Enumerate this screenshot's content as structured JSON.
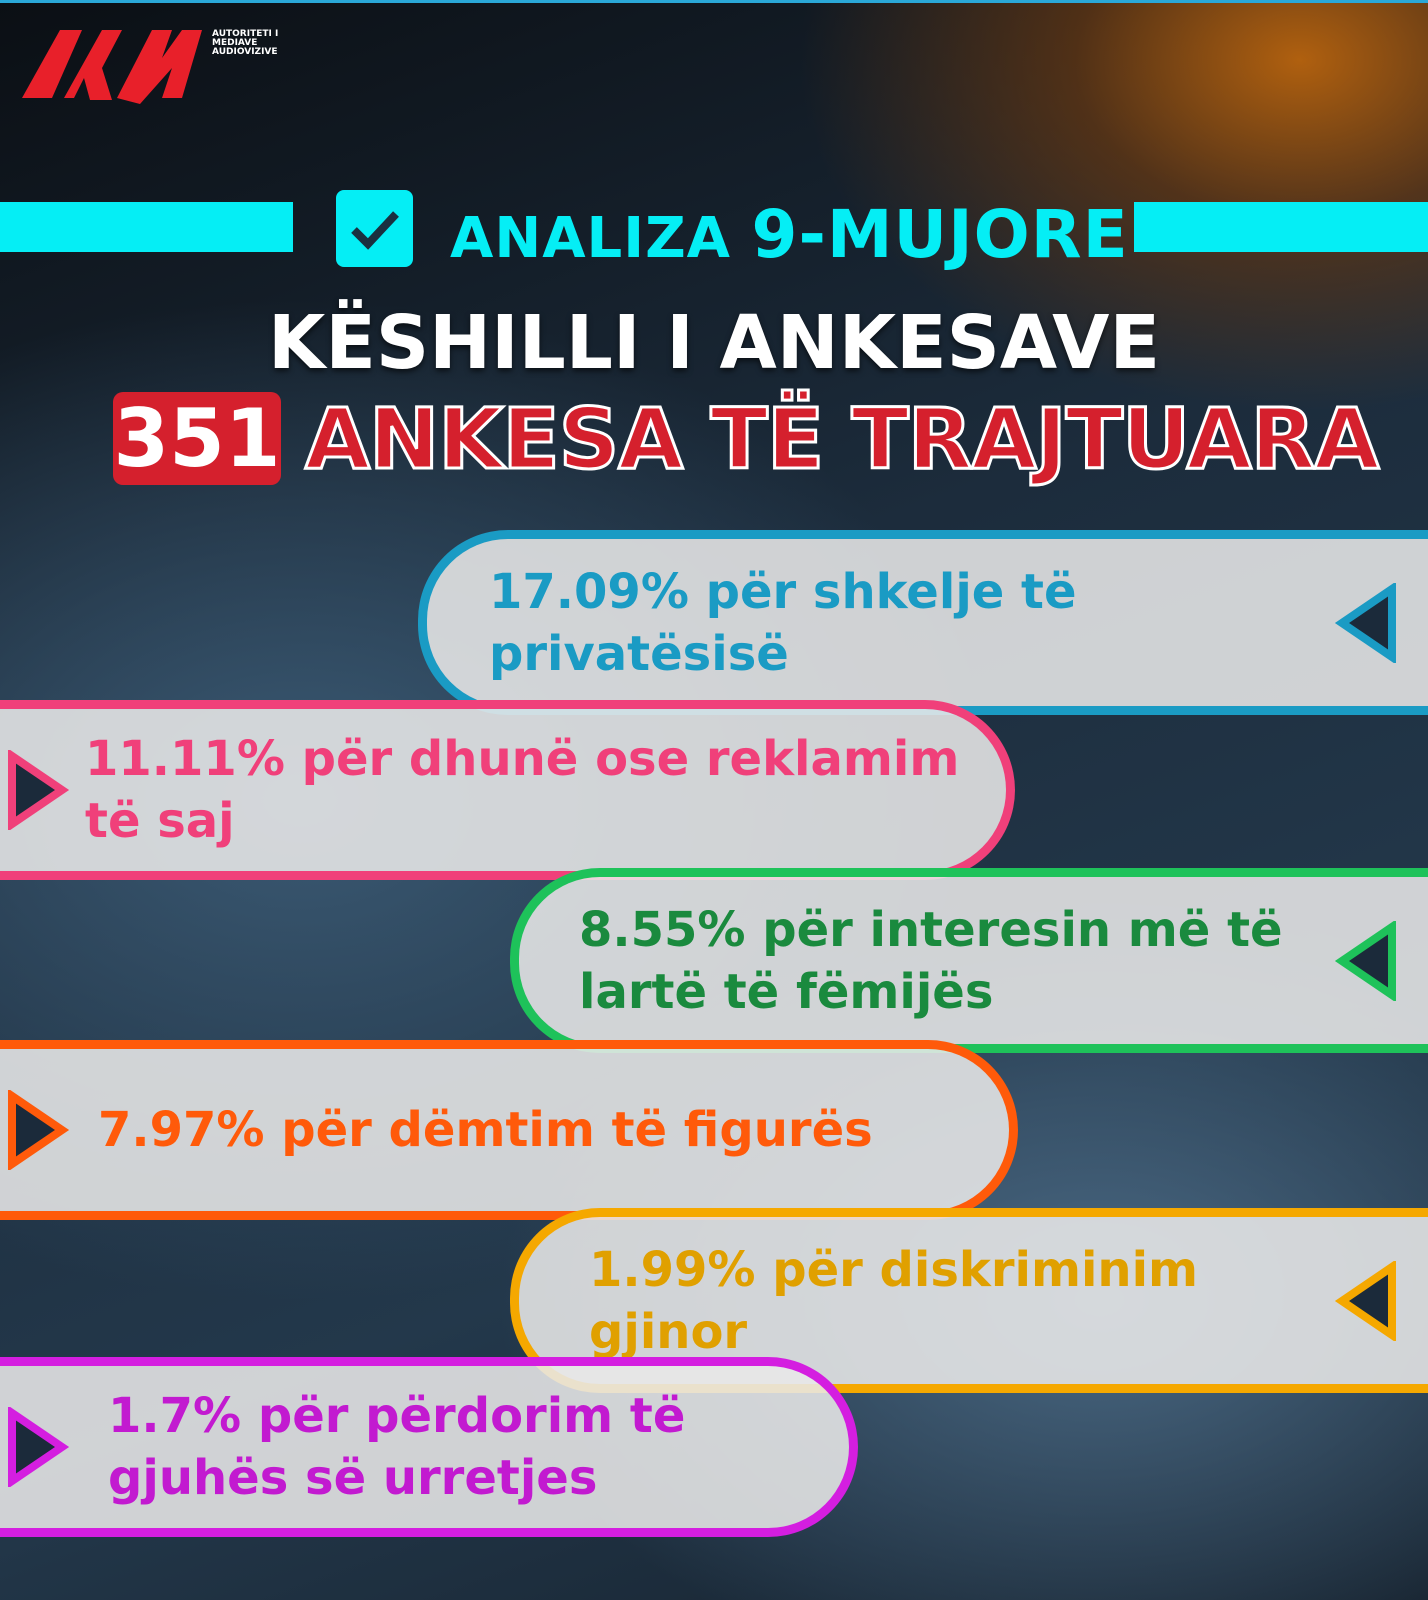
{
  "logo": {
    "mark": "AMA",
    "text": [
      "AUTORITETI I",
      "MEDIAVE",
      "AUDIOVIZIVE"
    ],
    "color": "#e8202a"
  },
  "header": {
    "label": "ANALIZA",
    "number": "9-MUJORE",
    "accent": "#05eef5",
    "icon": "checkmark-icon"
  },
  "title": "KËSHILLI I ANKESAVE",
  "count": "351",
  "subtitle": "ANKESA TË TRAJTUARA",
  "items": [
    {
      "text": "17.09% për shkelje të privatësisë",
      "line1": "17.09% për shkelje të",
      "line2": "privatësisë",
      "color": "#1a9bc4",
      "text_color": "#1a9bc4",
      "side": "right",
      "value": 17.09
    },
    {
      "text": "11.11% për dhunë ose reklamim të saj",
      "line1": "11.11% për dhunë ose reklamim",
      "line2": "të saj",
      "color": "#f0407a",
      "text_color": "#f0407a",
      "side": "left",
      "value": 11.11
    },
    {
      "text": "8.55% për interesin më të lartë të fëmijës",
      "line1": "8.55% për interesin më të",
      "line2": "lartë të fëmijës",
      "color": "#1ec25a",
      "text_color": "#1a8a3e",
      "side": "right",
      "value": 8.55
    },
    {
      "text": "7.97% për dëmtim të figurës",
      "line1": "7.97% për dëmtim të figurës",
      "line2": "",
      "color": "#ff5a0a",
      "text_color": "#ff5a0a",
      "side": "left",
      "value": 7.97
    },
    {
      "text": "1.99% për diskriminim gjinor",
      "line1": "1.99% për diskriminim",
      "line2": "gjinor",
      "color": "#f5a800",
      "text_color": "#e0a000",
      "side": "right",
      "value": 1.99
    },
    {
      "text": "1.7% për përdorim të gjuhës së urretjes",
      "line1": "1.7% për përdorim të",
      "line2": "gjuhës së urretjes",
      "color": "#d41ee0",
      "text_color": "#c21ad0",
      "side": "left",
      "value": 1.7
    }
  ]
}
